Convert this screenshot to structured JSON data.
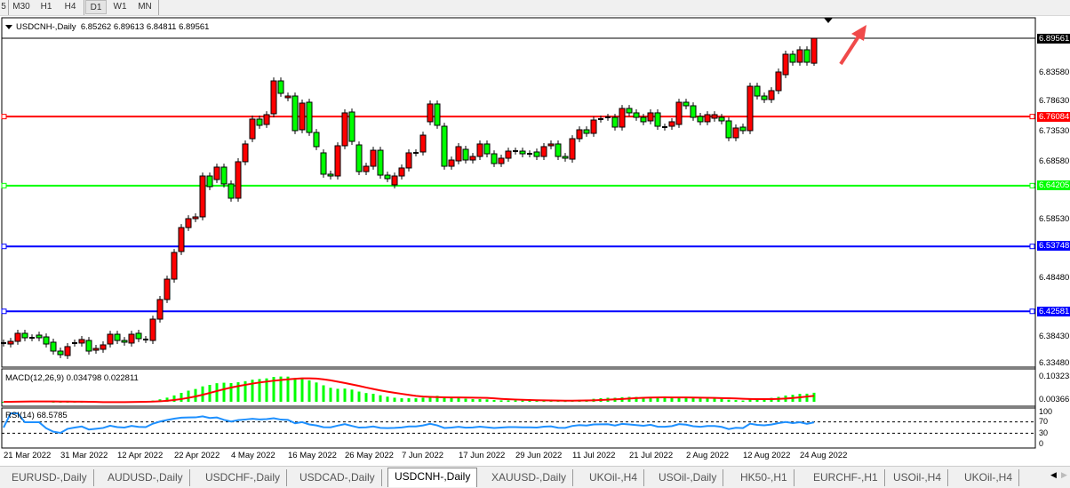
{
  "toolbar": {
    "timeframes": [
      "5",
      "M30",
      "H1",
      "H4",
      "D1",
      "W1",
      "MN"
    ],
    "selected": "D1"
  },
  "chart_header": {
    "symbol": "USDCNH-,Daily",
    "open": "6.85262",
    "high": "6.89613",
    "low": "6.84811",
    "close": "6.89561"
  },
  "colors": {
    "bull": "#ff0000",
    "bear": "#00ff00",
    "macd_hist": "#00ff00",
    "macd_signal": "#ff0000",
    "rsi": "#1e90ff",
    "bid_line": "#000000"
  },
  "price_axis": {
    "labels": [
      "6.83580",
      "6.78630",
      "6.73530",
      "6.68580",
      "6.58530",
      "6.48480",
      "6.38430",
      "6.33480"
    ],
    "current": "6.89561"
  },
  "levels": [
    {
      "price": 6.76084,
      "label": "6.76084",
      "color": "#ff0000"
    },
    {
      "price": 6.64205,
      "label": "6.64205",
      "color": "#00ff00"
    },
    {
      "price": 6.53748,
      "label": "6.53748",
      "color": "#0000ff"
    },
    {
      "price": 6.42581,
      "label": "6.42581",
      "color": "#0000ff"
    }
  ],
  "macd": {
    "label": "MACD(12,26,9) 0.034798 0.022811",
    "axis": [
      "0.103233",
      "0.00366"
    ]
  },
  "rsi": {
    "label": "RSI(14) 68.5785",
    "axis": [
      "100",
      "70",
      "30",
      "0"
    ],
    "levels": [
      70,
      30
    ]
  },
  "date_axis": [
    "21 Mar 2022",
    "31 Mar 2022",
    "12 Apr 2022",
    "22 Apr 2022",
    "4 May 2022",
    "16 May 2022",
    "26 May 2022",
    "7 Jun 2022",
    "17 Jun 2022",
    "29 Jun 2022",
    "11 Jul 2022",
    "21 Jul 2022",
    "2 Aug 2022",
    "12 Aug 2022",
    "24 Aug 2022"
  ],
  "tabs": [
    "EURUSD-,Daily",
    "AUDUSD-,Daily",
    "USDCHF-,Daily",
    "USDCAD-,Daily",
    "USDCNH-,Daily",
    "XAUUSD-,Daily",
    "UKOil-,H4",
    "USOil-,Daily",
    "HK50-,H1",
    "EURCHF-,H1",
    "USOil-,H4",
    "UKOil-,H4"
  ],
  "active_tab": "USDCNH-,Daily",
  "chart_data": {
    "type": "candlestick",
    "note_format": "[open, close]",
    "ylim": [
      6.3348,
      6.8956
    ],
    "last_bar": {
      "open": 6.85262,
      "high": 6.89613,
      "low": 6.84811,
      "close": 6.89561
    },
    "candles": [
      [
        6.3712,
        6.3712
      ],
      [
        6.3696,
        6.3742
      ],
      [
        6.3742,
        6.388
      ],
      [
        6.388,
        6.3803
      ],
      [
        6.3803,
        6.3803
      ],
      [
        6.3849,
        6.3803
      ],
      [
        6.3818,
        6.3696
      ],
      [
        6.3727,
        6.3574
      ],
      [
        6.3574,
        6.3513
      ],
      [
        6.3498,
        6.3651
      ],
      [
        6.3712,
        6.3712
      ],
      [
        6.3712,
        6.3773
      ],
      [
        6.3757,
        6.3574
      ],
      [
        6.3589,
        6.362
      ],
      [
        6.3605,
        6.3681
      ],
      [
        6.3696,
        6.3864
      ],
      [
        6.3864,
        6.3757
      ],
      [
        6.3757,
        6.3727
      ],
      [
        6.3712,
        6.3864
      ],
      [
        6.388,
        6.3788
      ],
      [
        6.3773,
        6.3773
      ],
      [
        6.3757,
        6.4124
      ],
      [
        6.4124,
        6.4461
      ],
      [
        6.4461,
        6.4812
      ],
      [
        6.4812,
        6.5271
      ],
      [
        6.5287,
        6.5699
      ],
      [
        6.5699,
        6.5852
      ],
      [
        6.5852,
        6.5883
      ],
      [
        6.5883,
        6.6586
      ],
      [
        6.6586,
        6.6403
      ],
      [
        6.6525,
        6.6739
      ],
      [
        6.6739,
        6.6449
      ],
      [
        6.6449,
        6.6204
      ],
      [
        6.6204,
        6.6831
      ],
      [
        6.6831,
        6.7137
      ],
      [
        6.7228,
        6.7565
      ],
      [
        6.7565,
        6.7458
      ],
      [
        6.7473,
        6.7641
      ],
      [
        6.7656,
        6.8222
      ],
      [
        6.8222,
        6.8008
      ],
      [
        6.7932,
        6.7962
      ],
      [
        6.7962,
        6.7366
      ],
      [
        6.7381,
        6.784
      ],
      [
        6.7855,
        6.7335
      ],
      [
        6.7335,
        6.7091
      ],
      [
        6.6984,
        6.6617
      ],
      [
        6.6617,
        6.6586
      ],
      [
        6.6586,
        6.7106
      ],
      [
        6.7106,
        6.7672
      ],
      [
        6.7687,
        6.7182
      ],
      [
        6.7121,
        6.6662
      ],
      [
        6.6662,
        6.6754
      ],
      [
        6.6754,
        6.7029
      ],
      [
        6.7029,
        6.6601
      ],
      [
        6.6601,
        6.654
      ],
      [
        6.6433,
        6.6586
      ],
      [
        6.6586,
        6.6724
      ],
      [
        6.6724,
        6.6984
      ],
      [
        6.6984,
        6.6984
      ],
      [
        6.6999,
        6.7289
      ],
      [
        6.7519,
        6.7825
      ],
      [
        6.7825,
        6.7458
      ],
      [
        6.7442,
        6.6754
      ],
      [
        6.6754,
        6.6861
      ],
      [
        6.6846,
        6.7091
      ],
      [
        6.7045,
        6.6861
      ],
      [
        6.6861,
        6.6922
      ],
      [
        6.6922,
        6.7137
      ],
      [
        6.7137,
        6.6968
      ],
      [
        6.6968,
        6.68
      ],
      [
        6.68,
        6.6892
      ],
      [
        6.6892,
        6.7014
      ],
      [
        6.7014,
        6.7014
      ],
      [
        6.7014,
        6.6968
      ],
      [
        6.6968,
        6.6968
      ],
      [
        6.6999,
        6.6922
      ],
      [
        6.6922,
        6.7091
      ],
      [
        6.7106,
        6.7137
      ],
      [
        6.7137,
        6.6922
      ],
      [
        6.6922,
        6.6892
      ],
      [
        6.6876,
        6.7228
      ],
      [
        6.7228,
        6.7381
      ],
      [
        6.7381,
        6.732
      ],
      [
        6.732,
        6.7549
      ],
      [
        6.7565,
        6.7565
      ],
      [
        6.7595,
        6.7595
      ],
      [
        6.7595,
        6.7427
      ],
      [
        6.7427,
        6.7748
      ],
      [
        6.7748,
        6.7672
      ],
      [
        6.7672,
        6.7595
      ],
      [
        6.7595,
        6.7519
      ],
      [
        6.7534,
        6.7672
      ],
      [
        6.7672,
        6.7442
      ],
      [
        6.7427,
        6.7427
      ],
      [
        6.7442,
        6.7519
      ],
      [
        6.7473,
        6.7855
      ],
      [
        6.7855,
        6.7794
      ],
      [
        6.7794,
        6.7595
      ],
      [
        6.7611,
        6.7519
      ],
      [
        6.7519,
        6.7641
      ],
      [
        6.758,
        6.7641
      ],
      [
        6.7595,
        6.7534
      ],
      [
        6.7534,
        6.7244
      ],
      [
        6.7244,
        6.7412
      ],
      [
        6.7427,
        6.7366
      ],
      [
        6.7366,
        6.813
      ],
      [
        6.813,
        6.7962
      ],
      [
        6.7962,
        6.7901
      ],
      [
        6.7901,
        6.8054
      ],
      [
        6.8054,
        6.8375
      ],
      [
        6.8329,
        6.8681
      ],
      [
        6.8681,
        6.8543
      ],
      [
        6.8543,
        6.8757
      ],
      [
        6.8757,
        6.8543
      ],
      [
        6.85262,
        6.89561
      ]
    ]
  }
}
